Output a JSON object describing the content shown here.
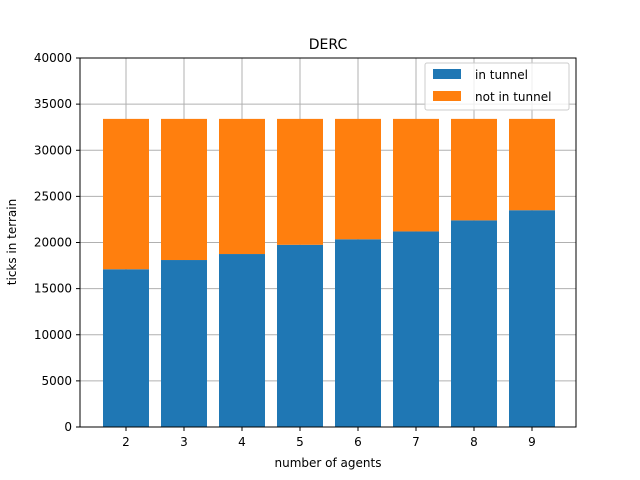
{
  "chart_data": {
    "type": "bar",
    "stacked": true,
    "title": "DERC",
    "xlabel": "number of agents",
    "ylabel": "ticks in terrain",
    "categories": [
      "2",
      "3",
      "4",
      "5",
      "6",
      "7",
      "8",
      "9"
    ],
    "series": [
      {
        "name": "in tunnel",
        "color": "#1f77b4",
        "values": [
          17100,
          18100,
          18750,
          19750,
          20350,
          21200,
          22400,
          23500
        ]
      },
      {
        "name": "not in tunnel",
        "color": "#ff7f0e",
        "values": [
          16300,
          15300,
          14650,
          13650,
          13050,
          12200,
          11000,
          9900
        ]
      }
    ],
    "ylim": [
      0,
      40000
    ],
    "yticks": [
      "0",
      "5000",
      "10000",
      "15000",
      "20000",
      "25000",
      "30000",
      "35000",
      "40000"
    ],
    "grid": true,
    "legend_position": "top-right"
  }
}
